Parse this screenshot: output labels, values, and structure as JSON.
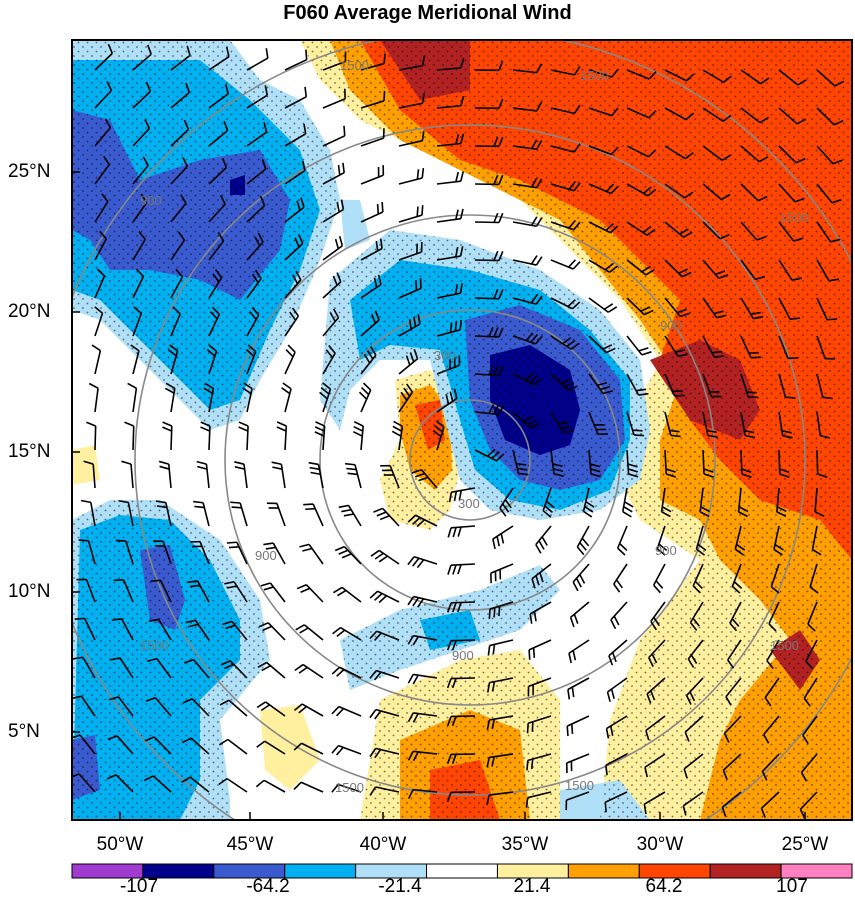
{
  "title": "F060 Average Meridional Wind",
  "lat_labels": [
    "25°N",
    "20°N",
    "15°N",
    "10°N",
    "5°N"
  ],
  "lon_labels": [
    "50°W",
    "45°W",
    "40°W",
    "35°W",
    "30°W",
    "25°W"
  ],
  "colorbar": {
    "labels": [
      "-107",
      "-64.2",
      "-21.4",
      "21.4",
      "64.2",
      "107"
    ],
    "colors": [
      "#a03ad0",
      "#00008b",
      "#3a5ad0",
      "#00b0f0",
      "#b0e0f8",
      "#ffffff",
      "#fff0a0",
      "#ffa000",
      "#ff4500",
      "#b22222",
      "#ff80c0"
    ]
  },
  "map": {
    "type": "filled contour map with wind barbs and range rings",
    "range_ring_labels": [
      "300",
      "300",
      "900",
      "900",
      "1500",
      "1500",
      "1500",
      "900",
      "1500",
      "1500",
      "900",
      "1500",
      "900",
      "1500"
    ]
  }
}
